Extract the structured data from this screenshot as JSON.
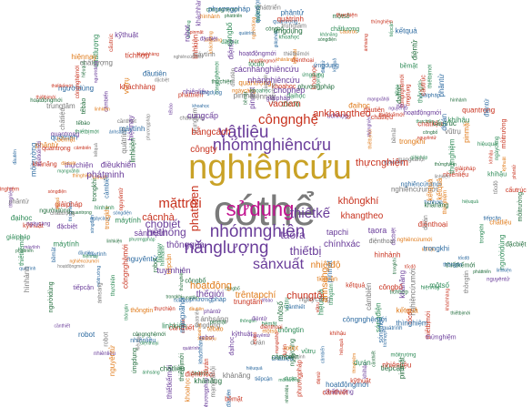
{
  "palette": {
    "gray": "#7a7a7a",
    "gold": "#c9a227",
    "purple": "#6a3d9a",
    "magenta": "#c2128f",
    "red": "#c8321e",
    "orange": "#e07b1a",
    "green": "#2e8b57",
    "darkgreen": "#1f6b3a",
    "blue": "#2c6aa0"
  },
  "wordcloud": {
    "words": [
      {
        "text": "cóthể",
        "color": "gray"
      },
      {
        "text": "nghiêncứu",
        "color": "gold"
      },
      {
        "text": "sửdụng",
        "color": "magenta"
      },
      {
        "text": "nhómnghiêncứu",
        "color": "purple"
      },
      {
        "text": "vậtliệu",
        "color": "purple"
      },
      {
        "text": "nhómnghiên",
        "color": "purple"
      },
      {
        "text": "nănglượng",
        "color": "purple"
      },
      {
        "text": "thiếtkế",
        "color": "purple"
      },
      {
        "text": "sảnxuất",
        "color": "purple"
      },
      {
        "text": "côngnghệ",
        "color": "red"
      },
      {
        "text": "mặttrời",
        "color": "red"
      },
      {
        "text": "phattrien",
        "color": "red"
      },
      {
        "text": "thiếtbị",
        "color": "purple"
      },
      {
        "text": "taora",
        "color": "purple"
      },
      {
        "text": "hệthống",
        "color": "purple"
      },
      {
        "text": "chobiết",
        "color": "purple"
      },
      {
        "text": "cácnhà",
        "color": "red"
      },
      {
        "text": "thựcnghiệm",
        "color": "red"
      },
      {
        "text": "ankhangtheo",
        "color": "red"
      },
      {
        "text": "khôngkhí",
        "color": "red"
      },
      {
        "text": "khangtheo",
        "color": "red"
      },
      {
        "text": "hoạtđộng",
        "color": "orange"
      },
      {
        "text": "trêntạpchí",
        "color": "orange"
      },
      {
        "text": "chungtôi",
        "color": "red"
      },
      {
        "text": "bằngcách",
        "color": "red"
      },
      {
        "text": "côngty",
        "color": "red"
      },
      {
        "text": "chínhxác",
        "color": "purple"
      },
      {
        "text": "nhiệtđộ",
        "color": "orange"
      },
      {
        "text": "vaonam",
        "color": "red"
      },
      {
        "text": "annsang",
        "color": "orange"
      },
      {
        "text": "tapchi",
        "color": "purple"
      },
      {
        "text": "tạora",
        "color": "purple"
      },
      {
        "text": "thôngqua",
        "color": "purple"
      },
      {
        "text": "thếgiới",
        "color": "purple"
      },
      {
        "text": "tuyrnhiên",
        "color": "purple"
      },
      {
        "text": "sảnphẩm",
        "color": "purple"
      },
      {
        "text": "điềukhiển",
        "color": "purple"
      },
      {
        "text": "phátminh",
        "color": "purple"
      },
      {
        "text": "cungcấp",
        "color": "purple"
      },
      {
        "text": "chophép",
        "color": "purple"
      },
      {
        "text": "nhànghiêncứu",
        "color": "purple"
      },
      {
        "text": "cácnhànghiêncứu",
        "color": "purple"
      },
      {
        "text": "thìnghiệm",
        "color": "purple"
      },
      {
        "text": "ứngdụng",
        "color": "purple"
      },
      {
        "text": "kếtquả",
        "color": "purple"
      },
      {
        "text": "quátrình",
        "color": "purple"
      },
      {
        "text": "khoahọc",
        "color": "purple"
      },
      {
        "text": "dựán",
        "color": "purple"
      },
      {
        "text": "trongkhi",
        "color": "purple"
      },
      {
        "text": "nguyêntử",
        "color": "purple"
      },
      {
        "text": "giảipháp",
        "color": "purple"
      },
      {
        "text": "tiếpcận",
        "color": "purple"
      },
      {
        "text": "máytính",
        "color": "purple"
      },
      {
        "text": "phươngpháp",
        "color": "purple"
      },
      {
        "text": "khảnăng",
        "color": "purple"
      },
      {
        "text": "bềmặt",
        "color": "purple"
      },
      {
        "text": "đầutiên",
        "color": "purple"
      },
      {
        "text": "pinmặt",
        "color": "purple"
      },
      {
        "text": "ánhsáng",
        "color": "purple"
      },
      {
        "text": "côngnghệmới",
        "color": "purple"
      },
      {
        "text": "thiếtbịmới",
        "color": "purple"
      },
      {
        "text": "linhkiện",
        "color": "purple"
      },
      {
        "text": "môitrường",
        "color": "purple"
      },
      {
        "text": "đặcbiệt",
        "color": "purple"
      },
      {
        "text": "mộtsố",
        "color": "purple"
      },
      {
        "text": "hiệuquả",
        "color": "purple"
      },
      {
        "text": "ngàycàng",
        "color": "purple"
      },
      {
        "text": "quantrọng",
        "color": "purple"
      },
      {
        "text": "thôngtin",
        "color": "purple"
      },
      {
        "text": "cầnthiết",
        "color": "purple"
      },
      {
        "text": "kỹthuật",
        "color": "purple"
      },
      {
        "text": "phântử",
        "color": "purple"
      },
      {
        "text": "thiếtkếmới",
        "color": "purple"
      },
      {
        "text": "chấtliệu",
        "color": "purple"
      },
      {
        "text": "nhiênliệu",
        "color": "purple"
      },
      {
        "text": "điệnthoại",
        "color": "purple"
      },
      {
        "text": "nghiêncứumới",
        "color": "purple"
      },
      {
        "text": "tíchhợp",
        "color": "purple"
      },
      {
        "text": "thửnghiệm",
        "color": "purple"
      },
      {
        "text": "trungtâm",
        "color": "purple"
      },
      {
        "text": "hiệnnay",
        "color": "purple"
      },
      {
        "text": "ngườidùng",
        "color": "purple"
      },
      {
        "text": "thựchiện",
        "color": "purple"
      },
      {
        "text": "tốcđộ",
        "color": "purple"
      },
      {
        "text": "hìnhảnh",
        "color": "purple"
      },
      {
        "text": "pháttriển",
        "color": "purple"
      },
      {
        "text": "côngbố",
        "color": "purple"
      },
      {
        "text": "chấtlượng",
        "color": "purple"
      },
      {
        "text": "đạihọc",
        "color": "purple"
      },
      {
        "text": "điệntử",
        "color": "purple"
      },
      {
        "text": "cấutrúc",
        "color": "purple"
      },
      {
        "text": "kháchhàng",
        "color": "purple"
      },
      {
        "text": "cảmbiến",
        "color": "purple"
      },
      {
        "text": "hoạtđộngmới",
        "color": "purple"
      },
      {
        "text": "robot",
        "color": "purple"
      },
      {
        "text": "mạngxãhội",
        "color": "purple"
      },
      {
        "text": "tếbào",
        "color": "purple"
      },
      {
        "text": "khíhậu",
        "color": "purple"
      },
      {
        "text": "sóngđiện",
        "color": "purple"
      },
      {
        "text": "vũtrụ",
        "color": "purple"
      }
    ]
  }
}
